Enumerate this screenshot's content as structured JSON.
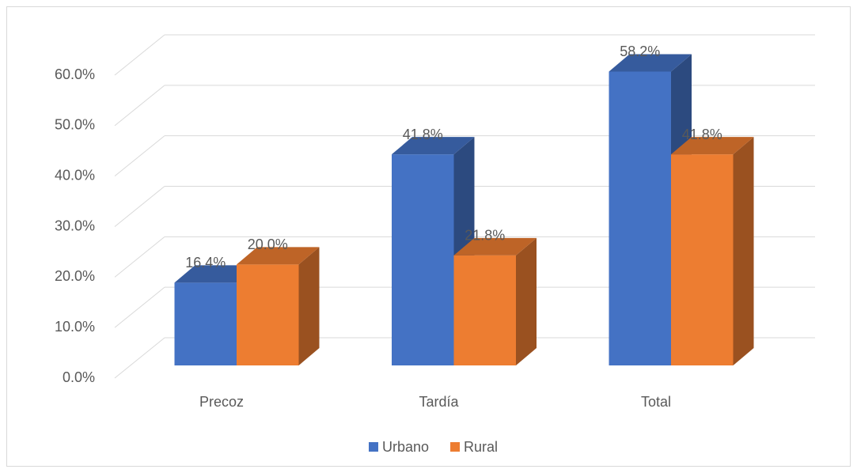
{
  "chart_data": {
    "type": "bar3d",
    "categories": [
      "Precoz",
      "Tardía",
      "Total"
    ],
    "series": [
      {
        "name": "Urbano",
        "color": "#4472c4",
        "values": [
          16.4,
          41.8,
          58.2
        ],
        "value_labels": [
          "16.4%",
          "41.8%",
          "58.2%"
        ]
      },
      {
        "name": "Rural",
        "color": "#ed7d31",
        "values": [
          20.0,
          21.8,
          41.8
        ],
        "value_labels": [
          "20.0%",
          "21.8%",
          "41.8%"
        ]
      }
    ],
    "ylim": [
      0,
      60
    ],
    "yticks": [
      {
        "value": 0,
        "label": "0.0%"
      },
      {
        "value": 10,
        "label": "10.0%"
      },
      {
        "value": 20,
        "label": "20.0%"
      },
      {
        "value": 30,
        "label": "30.0%"
      },
      {
        "value": 40,
        "label": "40.0%"
      },
      {
        "value": 50,
        "label": "50.0%"
      },
      {
        "value": 60,
        "label": "60.0%"
      }
    ],
    "grid": true,
    "legend": "bottom"
  }
}
